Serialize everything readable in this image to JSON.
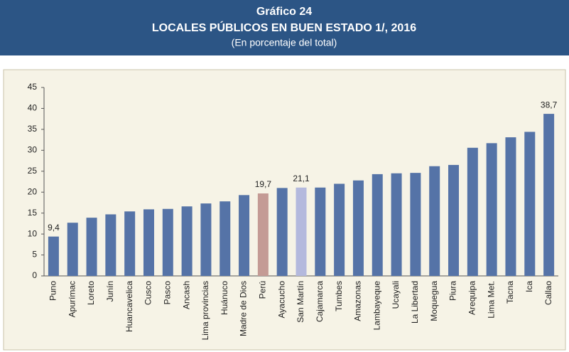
{
  "chart_data": {
    "type": "bar",
    "header": "Gráfico 24",
    "title": "LOCALES PÚBLICOS EN BUEN ESTADO 1/, 2016",
    "subtitle": "(En porcentaje del total)",
    "categories": [
      "Puno",
      "Apurímac",
      "Loreto",
      "Junín",
      "Huancavelica",
      "Cusco",
      "Pasco",
      "Ancash",
      "Lima provincias",
      "Huánuco",
      "Madre de Dios",
      "Perú",
      "Ayacucho",
      "San Martín",
      "Cajamarca",
      "Tumbes",
      "Amazonas",
      "Lambayeque",
      "Ucayali",
      "La Libertad",
      "Moquegua",
      "Piura",
      "Arequipa",
      "Lima Met.",
      "Tacna",
      "Ica",
      "Callao"
    ],
    "values": [
      9.4,
      12.7,
      13.9,
      14.7,
      15.4,
      15.9,
      16.0,
      16.6,
      17.3,
      17.8,
      19.3,
      19.7,
      21.0,
      21.1,
      21.1,
      22.0,
      22.8,
      24.3,
      24.5,
      24.6,
      26.2,
      26.5,
      30.6,
      31.7,
      33.1,
      34.4,
      38.7
    ],
    "value_labels": [
      "9,4",
      null,
      null,
      null,
      null,
      null,
      null,
      null,
      null,
      null,
      null,
      "19,7",
      null,
      "21,1",
      null,
      null,
      null,
      null,
      null,
      null,
      null,
      null,
      null,
      null,
      null,
      null,
      "38,7"
    ],
    "colors": [
      "#5573a7",
      "#5573a7",
      "#5573a7",
      "#5573a7",
      "#5573a7",
      "#5573a7",
      "#5573a7",
      "#5573a7",
      "#5573a7",
      "#5573a7",
      "#5573a7",
      "#c49b95",
      "#5573a7",
      "#b4b9dd",
      "#5573a7",
      "#5573a7",
      "#5573a7",
      "#5573a7",
      "#5573a7",
      "#5573a7",
      "#5573a7",
      "#5573a7",
      "#5573a7",
      "#5573a7",
      "#5573a7",
      "#5573a7",
      "#5573a7"
    ],
    "ylim": [
      0,
      45
    ],
    "yticks": [
      0,
      5,
      10,
      15,
      20,
      25,
      30,
      35,
      40,
      45
    ],
    "grid": false
  }
}
